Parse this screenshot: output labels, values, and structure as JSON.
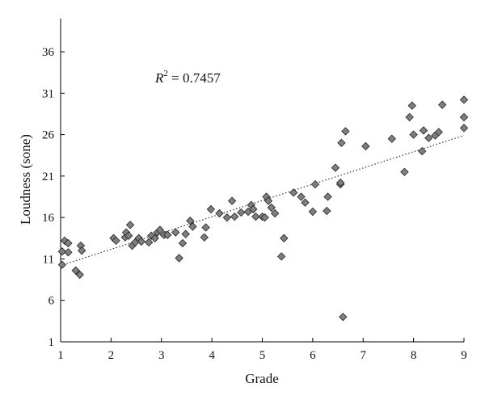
{
  "chart_data": {
    "type": "scatter",
    "xlabel": "Grade",
    "ylabel": "Loudness (sone)",
    "annotation": {
      "prefix": "R",
      "superscript": "2",
      "text": " = 0.7457"
    },
    "xlim": [
      1,
      9
    ],
    "ylim": [
      1,
      40
    ],
    "xticks": [
      "1",
      "2",
      "3",
      "4",
      "5",
      "6",
      "7",
      "8",
      "9"
    ],
    "yticks": [
      "1",
      "6",
      "11",
      "16",
      "21",
      "26",
      "31",
      "36"
    ],
    "grid": false,
    "marker": "diamond",
    "marker_color": "#7f7f7f",
    "trendline": {
      "style": "dotted",
      "x": [
        1,
        9
      ],
      "y": [
        10.2,
        25.9
      ]
    },
    "points": [
      [
        1.03,
        10.3
      ],
      [
        1.03,
        11.9
      ],
      [
        1.08,
        13.2
      ],
      [
        1.15,
        12.9
      ],
      [
        1.15,
        11.8
      ],
      [
        1.3,
        9.6
      ],
      [
        1.38,
        9.1
      ],
      [
        1.4,
        12.6
      ],
      [
        1.42,
        12.0
      ],
      [
        2.05,
        13.5
      ],
      [
        2.1,
        13.2
      ],
      [
        2.28,
        13.6
      ],
      [
        2.3,
        14.2
      ],
      [
        2.35,
        13.8
      ],
      [
        2.38,
        15.1
      ],
      [
        2.42,
        12.6
      ],
      [
        2.48,
        13.0
      ],
      [
        2.55,
        13.5
      ],
      [
        2.6,
        13.1
      ],
      [
        2.75,
        13.0
      ],
      [
        2.8,
        13.8
      ],
      [
        2.87,
        13.5
      ],
      [
        2.92,
        14.2
      ],
      [
        2.97,
        14.5
      ],
      [
        3.05,
        13.9
      ],
      [
        3.12,
        13.9
      ],
      [
        3.28,
        14.2
      ],
      [
        3.35,
        11.1
      ],
      [
        3.42,
        12.9
      ],
      [
        3.48,
        14.0
      ],
      [
        3.57,
        15.6
      ],
      [
        3.62,
        14.9
      ],
      [
        3.85,
        13.6
      ],
      [
        3.88,
        14.8
      ],
      [
        3.98,
        17.0
      ],
      [
        4.15,
        16.5
      ],
      [
        4.3,
        16.0
      ],
      [
        4.4,
        18.0
      ],
      [
        4.45,
        16.1
      ],
      [
        4.58,
        16.6
      ],
      [
        4.72,
        16.7
      ],
      [
        4.78,
        17.5
      ],
      [
        4.82,
        17.0
      ],
      [
        4.87,
        16.1
      ],
      [
        5.0,
        16.1
      ],
      [
        5.05,
        16.0
      ],
      [
        5.08,
        18.5
      ],
      [
        5.12,
        18.0
      ],
      [
        5.18,
        17.2
      ],
      [
        5.25,
        16.5
      ],
      [
        5.38,
        11.3
      ],
      [
        5.43,
        13.5
      ],
      [
        5.62,
        19.0
      ],
      [
        5.77,
        18.5
      ],
      [
        5.85,
        17.8
      ],
      [
        6.0,
        16.7
      ],
      [
        6.05,
        20.0
      ],
      [
        6.28,
        16.8
      ],
      [
        6.3,
        18.5
      ],
      [
        6.45,
        22.0
      ],
      [
        6.55,
        20.0
      ],
      [
        6.55,
        20.2
      ],
      [
        6.57,
        25.0
      ],
      [
        6.6,
        4.0
      ],
      [
        6.65,
        26.4
      ],
      [
        7.05,
        24.6
      ],
      [
        7.57,
        25.5
      ],
      [
        7.82,
        21.5
      ],
      [
        7.92,
        28.1
      ],
      [
        7.97,
        29.5
      ],
      [
        8.0,
        26.0
      ],
      [
        8.17,
        24.0
      ],
      [
        8.2,
        26.5
      ],
      [
        8.3,
        25.6
      ],
      [
        8.43,
        25.9
      ],
      [
        8.5,
        26.3
      ],
      [
        8.57,
        29.6
      ],
      [
        9.0,
        30.2
      ],
      [
        9.0,
        28.1
      ],
      [
        9.0,
        26.8
      ]
    ]
  }
}
